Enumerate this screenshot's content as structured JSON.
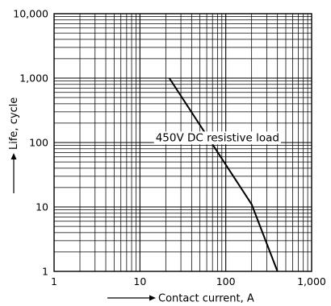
{
  "chart_data": {
    "type": "line",
    "title": "",
    "xlabel": "Contact current, A",
    "ylabel": "Life, cycle",
    "x_scale": "log",
    "y_scale": "log",
    "xlim": [
      1,
      1000
    ],
    "ylim": [
      1,
      10000
    ],
    "x_ticks": [
      {
        "value": 1,
        "label": "1"
      },
      {
        "value": 10,
        "label": "10"
      },
      {
        "value": 100,
        "label": "100"
      },
      {
        "value": 1000,
        "label": "1,000"
      }
    ],
    "y_ticks": [
      {
        "value": 1,
        "label": "1"
      },
      {
        "value": 10,
        "label": "10"
      },
      {
        "value": 100,
        "label": "100"
      },
      {
        "value": 1000,
        "label": "1,000"
      },
      {
        "value": 10000,
        "label": "10,000"
      }
    ],
    "grid": true,
    "legend": "none",
    "series": [
      {
        "x": [
          22,
          200,
          400
        ],
        "y": [
          1000,
          11,
          1
        ]
      }
    ],
    "annotations": [
      {
        "text": "450V DC resistive load",
        "x": 80,
        "y": 105
      }
    ],
    "colors": {
      "line": "#000000",
      "grid": "#000000",
      "background": "#ffffff"
    }
  }
}
